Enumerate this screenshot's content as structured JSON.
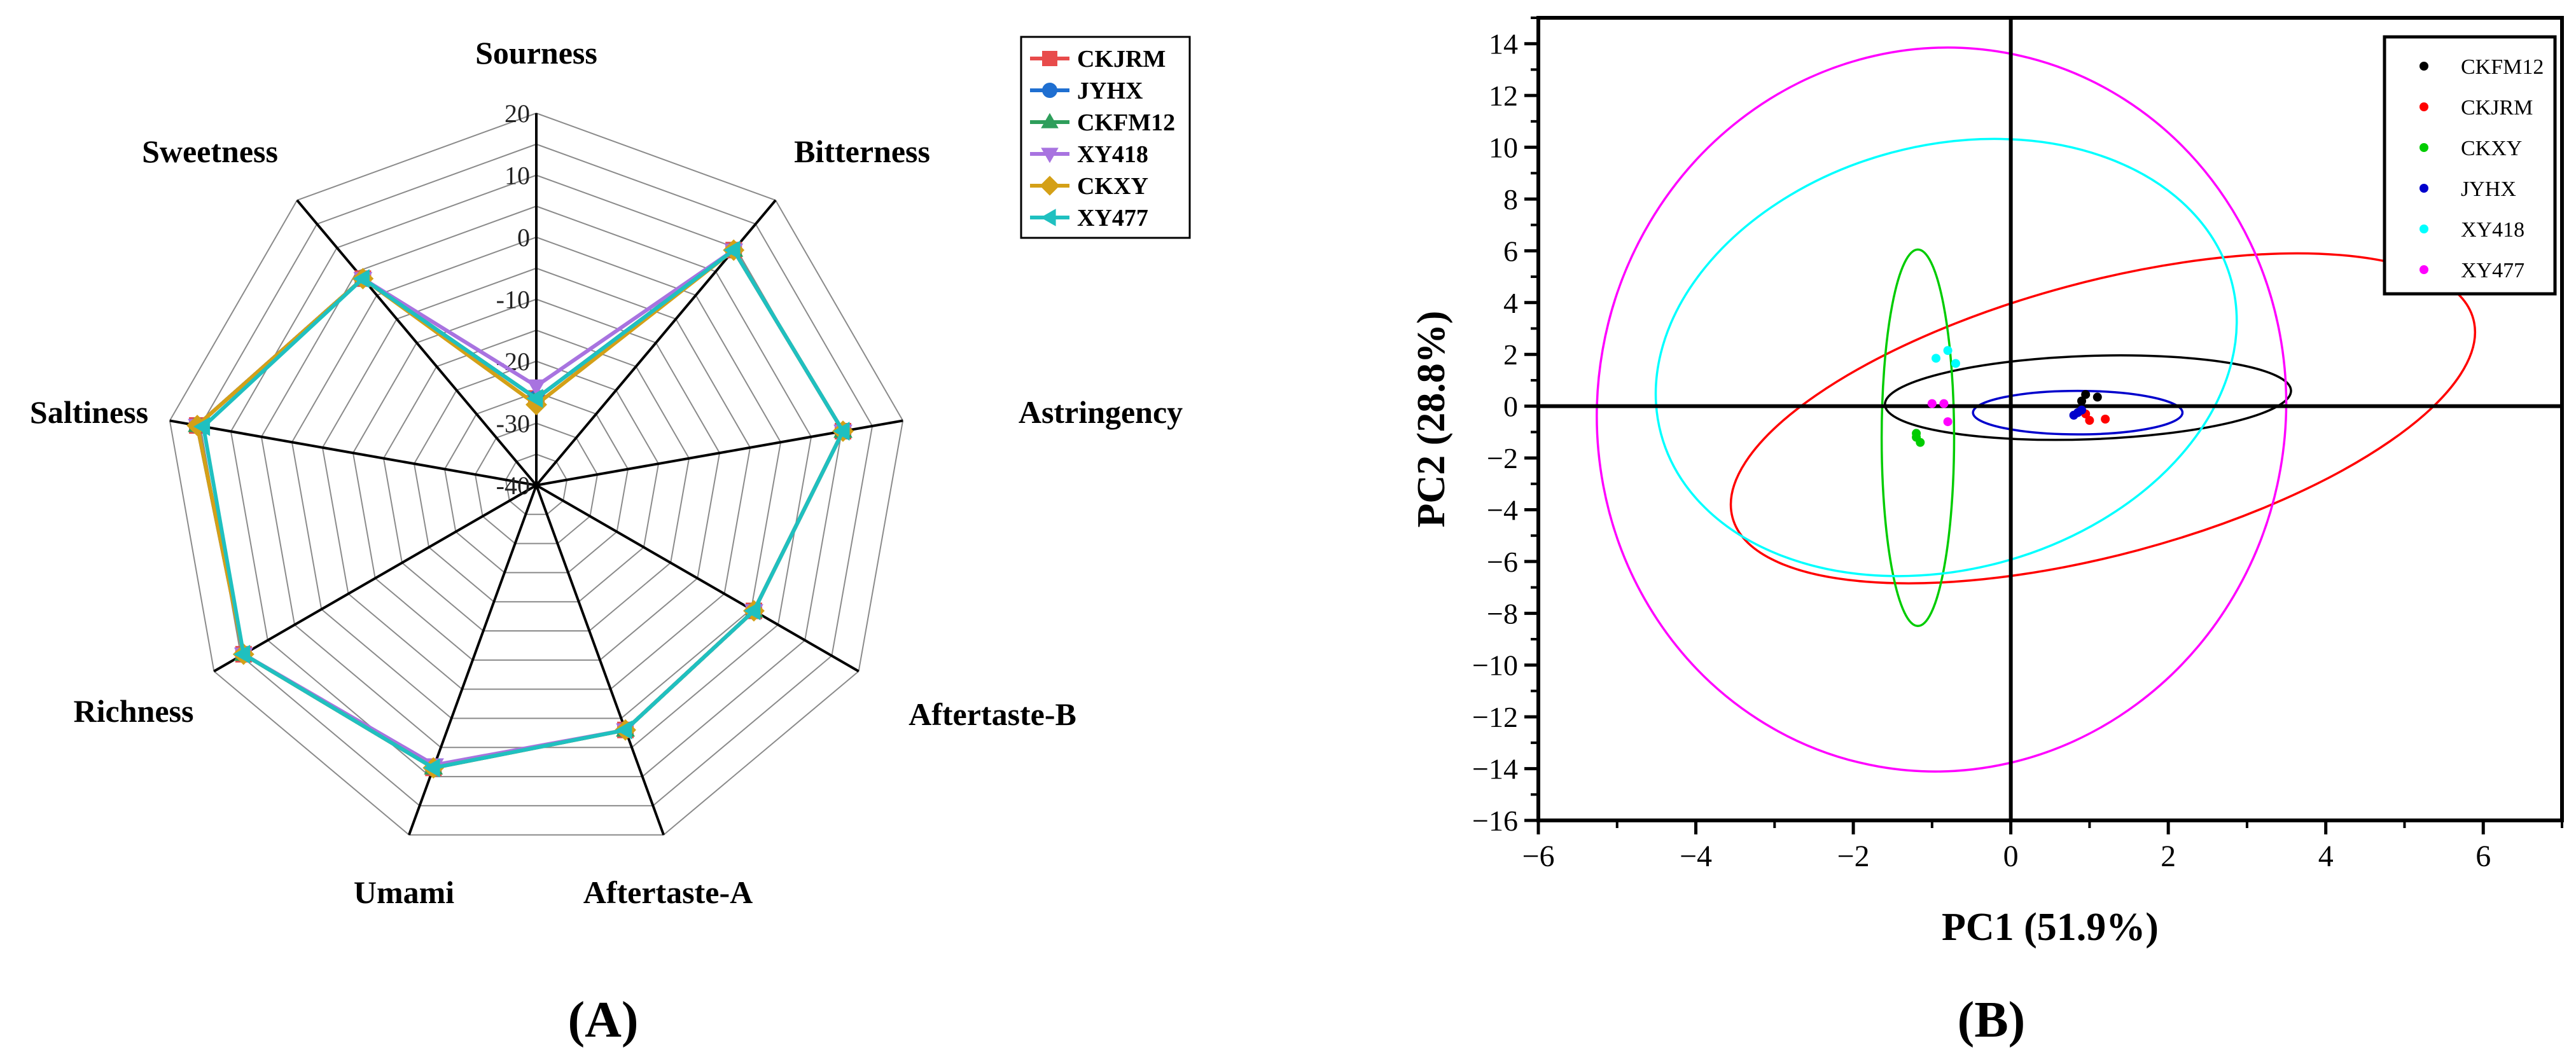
{
  "chart_data": [
    {
      "type": "radar",
      "panel_label": "(A)",
      "axes": [
        "Sourness",
        "Bitterness",
        "Astringency",
        "Aftertaste-B",
        "Aftertaste-A",
        "Umami",
        "Richness",
        "Saltiness",
        "Sweetness"
      ],
      "rlim": [
        -40,
        20
      ],
      "rticks": [
        "20",
        "10",
        "0",
        "-10",
        "-20",
        "-30",
        "-40"
      ],
      "rtick_values": [
        20,
        10,
        0,
        -10,
        -20,
        -30,
        -40
      ],
      "grid": true,
      "legend_position": "top-right",
      "series": [
        {
          "name": "CKJRM",
          "color": "#e84b4b",
          "marker": "square",
          "values": [
            -26,
            9.5,
            10.2,
            0.5,
            2,
            8.5,
            14.5,
            15.5,
            3.5
          ]
        },
        {
          "name": "JYHX",
          "color": "#1f6fd1",
          "marker": "circle",
          "values": [
            -26,
            9.5,
            10.2,
            0.5,
            2,
            8.5,
            14.5,
            15.5,
            3.5
          ]
        },
        {
          "name": "CKFM12",
          "color": "#2e9e5b",
          "marker": "triangle-up",
          "values": [
            -26,
            9.5,
            10.2,
            0.5,
            2,
            8.5,
            14.5,
            15.5,
            3.5
          ]
        },
        {
          "name": "XY418",
          "color": "#a873e0",
          "marker": "triangle-down",
          "values": [
            -24,
            9.5,
            10.2,
            0.5,
            2,
            8.0,
            14.5,
            15.5,
            3.5
          ]
        },
        {
          "name": "CKXY",
          "color": "#d4a017",
          "marker": "diamond",
          "values": [
            -27,
            9.5,
            10.2,
            0.5,
            2,
            8.5,
            14.5,
            15.5,
            3.5
          ]
        },
        {
          "name": "XY477",
          "color": "#1fc0c0",
          "marker": "triangle-left",
          "values": [
            -26,
            9.5,
            10.2,
            0.5,
            2,
            8.5,
            14.5,
            14.5,
            3.5
          ]
        }
      ]
    },
    {
      "type": "scatter",
      "panel_label": "(B)",
      "xlabel": "PC1 (51.9%)",
      "ylabel": "PC2 (28.8%)",
      "xlim": [
        -6,
        7
      ],
      "ylim": [
        -16,
        15
      ],
      "xticks": [
        -6,
        -4,
        -2,
        0,
        2,
        4,
        6
      ],
      "yticks": [
        -16,
        -14,
        -12,
        -10,
        -8,
        -6,
        -4,
        -2,
        0,
        2,
        4,
        6,
        8,
        10,
        12,
        14
      ],
      "legend_position": "top-right",
      "series": [
        {
          "name": "CKFM12",
          "color": "#000000",
          "points": [
            [
              0.95,
              0.45
            ],
            [
              1.1,
              0.35
            ],
            [
              0.9,
              0.2
            ]
          ],
          "ellipse": {
            "cx": 0.98,
            "cy": 0.33,
            "rx": 2.58,
            "ry": 1.61,
            "angle_deg": -2
          }
        },
        {
          "name": "CKJRM",
          "color": "#ff0000",
          "points": [
            [
              1.0,
              -0.55
            ],
            [
              1.2,
              -0.5
            ],
            [
              0.95,
              -0.3
            ]
          ],
          "ellipse": {
            "cx": 1.17,
            "cy": -0.47,
            "rx": 4.87,
            "ry": 5.27,
            "angle_deg": -15
          }
        },
        {
          "name": "CKXY",
          "color": "#00cc00",
          "points": [
            [
              -1.2,
              -1.2
            ],
            [
              -1.15,
              -1.4
            ],
            [
              -1.2,
              -1.05
            ]
          ],
          "ellipse": {
            "cx": -1.18,
            "cy": -1.22,
            "rx": 0.46,
            "ry": 7.27,
            "angle_deg": 0
          }
        },
        {
          "name": "JYHX",
          "color": "#0000cc",
          "points": [
            [
              0.8,
              -0.35
            ],
            [
              0.85,
              -0.25
            ],
            [
              0.9,
              -0.15
            ]
          ],
          "ellipse": {
            "cx": 0.85,
            "cy": -0.25,
            "rx": 1.33,
            "ry": 0.84,
            "angle_deg": 0
          }
        },
        {
          "name": "XY418",
          "color": "#00ffff",
          "points": [
            [
              -0.95,
              1.85
            ],
            [
              -0.7,
              1.65
            ],
            [
              -0.8,
              2.15
            ]
          ],
          "ellipse": {
            "cx": -0.82,
            "cy": 1.88,
            "rx": 3.75,
            "ry": 8.19,
            "angle_deg": -15
          }
        },
        {
          "name": "XY477",
          "color": "#ff00ff",
          "points": [
            [
              -1.0,
              0.1
            ],
            [
              -0.85,
              0.1
            ],
            [
              -0.8,
              -0.6
            ]
          ],
          "ellipse": {
            "cx": -0.88,
            "cy": -0.13,
            "rx": 4.37,
            "ry": 14.0,
            "angle_deg": 10
          }
        }
      ]
    }
  ]
}
